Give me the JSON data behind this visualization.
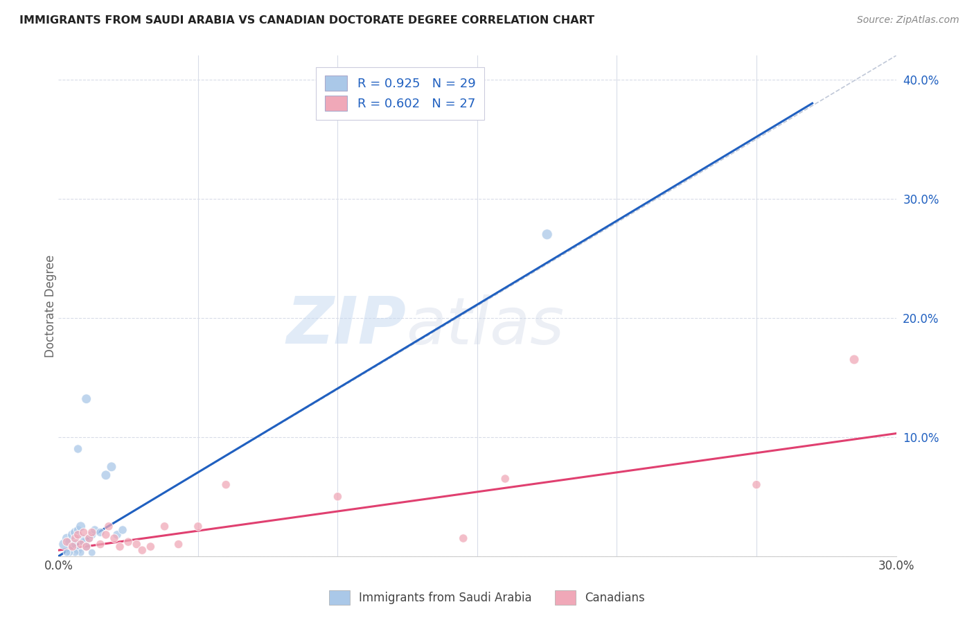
{
  "title": "IMMIGRANTS FROM SAUDI ARABIA VS CANADIAN DOCTORATE DEGREE CORRELATION CHART",
  "source": "Source: ZipAtlas.com",
  "ylabel": "Doctorate Degree",
  "xlim": [
    0.0,
    0.3
  ],
  "ylim": [
    0.0,
    0.42
  ],
  "xticks": [
    0.0,
    0.05,
    0.1,
    0.15,
    0.2,
    0.25,
    0.3
  ],
  "yticks": [
    0.0,
    0.1,
    0.2,
    0.3,
    0.4
  ],
  "ytick_labels": [
    "",
    "10.0%",
    "20.0%",
    "30.0%",
    "40.0%"
  ],
  "xtick_labels": [
    "0.0%",
    "",
    "",
    "",
    "",
    "",
    "30.0%"
  ],
  "legend1_R": "0.925",
  "legend1_N": "29",
  "legend2_R": "0.602",
  "legend2_N": "27",
  "legend_label1": "Immigrants from Saudi Arabia",
  "legend_label2": "Canadians",
  "blue_color": "#aac8e8",
  "pink_color": "#f0a8b8",
  "blue_line_color": "#2060c0",
  "pink_line_color": "#e04070",
  "watermark_zip": "ZIP",
  "watermark_atlas": "atlas",
  "blue_scatter_x": [
    0.002,
    0.003,
    0.004,
    0.005,
    0.005,
    0.006,
    0.006,
    0.007,
    0.007,
    0.008,
    0.008,
    0.009,
    0.01,
    0.011,
    0.012,
    0.013,
    0.015,
    0.017,
    0.019,
    0.021,
    0.023,
    0.008,
    0.012,
    0.006,
    0.004,
    0.003,
    0.007,
    0.175,
    0.01
  ],
  "blue_scatter_y": [
    0.01,
    0.015,
    0.012,
    0.008,
    0.018,
    0.02,
    0.01,
    0.022,
    0.005,
    0.015,
    0.025,
    0.012,
    0.008,
    0.015,
    0.018,
    0.022,
    0.02,
    0.068,
    0.075,
    0.018,
    0.022,
    0.003,
    0.003,
    0.003,
    0.003,
    0.003,
    0.09,
    0.27,
    0.132
  ],
  "blue_scatter_size": [
    120,
    100,
    100,
    80,
    100,
    100,
    80,
    80,
    80,
    100,
    100,
    80,
    80,
    80,
    80,
    80,
    80,
    100,
    100,
    80,
    80,
    60,
    60,
    60,
    60,
    60,
    80,
    120,
    100
  ],
  "pink_scatter_x": [
    0.003,
    0.005,
    0.006,
    0.007,
    0.008,
    0.009,
    0.01,
    0.011,
    0.012,
    0.015,
    0.017,
    0.018,
    0.02,
    0.022,
    0.025,
    0.028,
    0.03,
    0.033,
    0.038,
    0.043,
    0.05,
    0.06,
    0.1,
    0.145,
    0.16,
    0.25,
    0.285
  ],
  "pink_scatter_y": [
    0.012,
    0.008,
    0.015,
    0.018,
    0.01,
    0.02,
    0.008,
    0.015,
    0.02,
    0.01,
    0.018,
    0.025,
    0.015,
    0.008,
    0.012,
    0.01,
    0.005,
    0.008,
    0.025,
    0.01,
    0.025,
    0.06,
    0.05,
    0.015,
    0.065,
    0.06,
    0.165
  ],
  "pink_scatter_size": [
    80,
    80,
    80,
    80,
    80,
    80,
    80,
    80,
    80,
    80,
    80,
    80,
    80,
    80,
    80,
    80,
    80,
    80,
    80,
    80,
    80,
    80,
    80,
    80,
    80,
    80,
    100
  ],
  "blue_line_x": [
    0.0,
    0.27
  ],
  "blue_line_y": [
    0.0,
    0.38
  ],
  "pink_line_x": [
    0.0,
    0.3
  ],
  "pink_line_y": [
    0.005,
    0.103
  ],
  "ref_line_x": [
    0.0,
    0.3
  ],
  "ref_line_y": [
    0.0,
    0.42
  ],
  "background_color": "#ffffff",
  "grid_color": "#d8dce8"
}
